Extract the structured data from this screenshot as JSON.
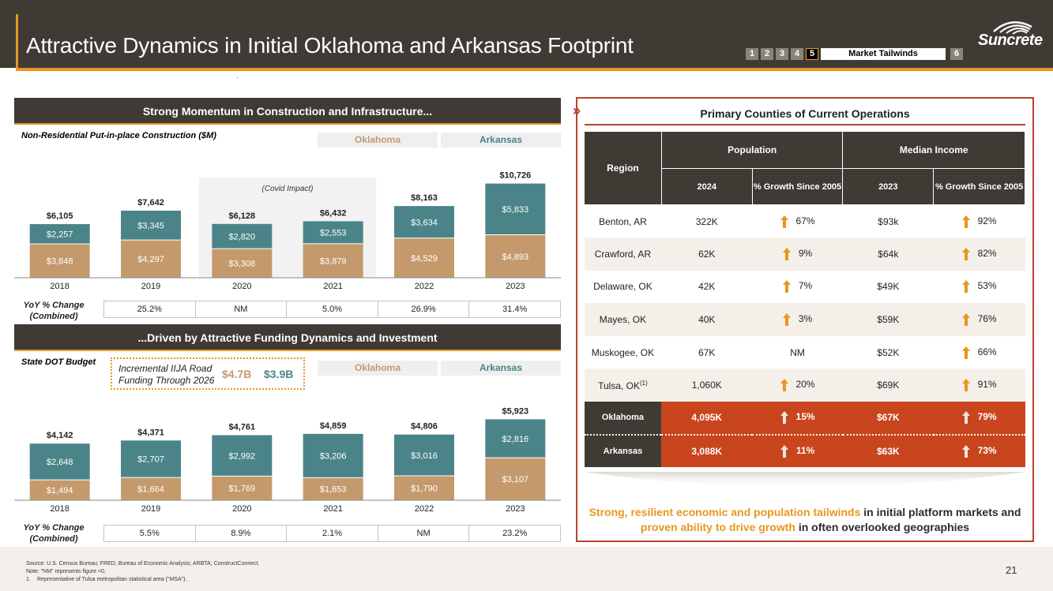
{
  "header": {
    "title": "Attractive Dynamics in Initial Oklahoma and Arkansas Footprint",
    "nav_left": [
      "1",
      "2",
      "3",
      "4",
      "5"
    ],
    "nav_active": "5",
    "nav_tab": "Market Tailwinds",
    "nav_right": "6",
    "logo_text": "Suncrete"
  },
  "colors": {
    "header_bg": "#3f3a34",
    "accent": "#e8961e",
    "oklahoma": "#c49a6c",
    "arkansas": "#4a8488",
    "highlight_row": "#c8451e",
    "panel_border": "#b8432a"
  },
  "top": {
    "section_title": "Strong Momentum in Construction and Infrastructure...",
    "subtitle": "Non-Residential Put-in-place Construction ($M)",
    "legend_ok": "Oklahoma",
    "legend_ar": "Arkansas",
    "covid_label": "(Covid Impact)",
    "yoy_label": "YoY % Change (Combined)",
    "yoy": [
      "25.2%",
      "NM",
      "5.0%",
      "26.9%",
      "31.4%"
    ]
  },
  "bottom": {
    "section_title": "...Driven by Attractive Funding Dynamics and Investment",
    "subtitle": "State DOT Budget",
    "iija_text": "Incremental IIJA Road Funding Through 2026",
    "iija_ok": "$4.7B",
    "iija_ar": "$3.9B",
    "legend_ok": "Oklahoma",
    "legend_ar": "Arkansas",
    "yoy_label": "YoY % Change (Combined)",
    "yoy": [
      "5.5%",
      "8.9%",
      "2.1%",
      "NM",
      "23.2%"
    ]
  },
  "chart_data": [
    {
      "type": "bar",
      "stacked": true,
      "title": "Non-Residential Put-in-place Construction ($M)",
      "categories": [
        "2018",
        "2019",
        "2020",
        "2021",
        "2022",
        "2023"
      ],
      "series": [
        {
          "name": "Oklahoma",
          "values": [
            3848,
            4297,
            3308,
            3879,
            4529,
            4893
          ],
          "labels": [
            "$3,848",
            "$4,297",
            "$3,308",
            "$3,879",
            "$4,529",
            "$4,893"
          ]
        },
        {
          "name": "Arkansas",
          "values": [
            2257,
            3345,
            2820,
            2553,
            3634,
            5833
          ],
          "labels": [
            "$2,257",
            "$3,345",
            "$2,820",
            "$2,553",
            "$3,634",
            "$5,833"
          ]
        }
      ],
      "totals": [
        "$6,105",
        "$7,642",
        "$6,128",
        "$6,432",
        "$8,163",
        "$10,726"
      ],
      "ylim": [
        0,
        11500
      ]
    },
    {
      "type": "bar",
      "stacked": true,
      "title": "State DOT Budget",
      "categories": [
        "2018",
        "2019",
        "2020",
        "2021",
        "2022",
        "2023"
      ],
      "series": [
        {
          "name": "Oklahoma",
          "values": [
            1494,
            1664,
            1769,
            1653,
            1790,
            3107
          ],
          "labels": [
            "$1,494",
            "$1,664",
            "$1,769",
            "$1,653",
            "$1,790",
            "$3,107"
          ]
        },
        {
          "name": "Arkansas",
          "values": [
            2648,
            2707,
            2992,
            3206,
            3016,
            2816
          ],
          "labels": [
            "$2,648",
            "$2,707",
            "$2,992",
            "$3,206",
            "$3,016",
            "$2,816"
          ]
        }
      ],
      "totals": [
        "$4,142",
        "$4,371",
        "$4,761",
        "$4,859",
        "$4,806",
        "$5,923"
      ],
      "ylim": [
        0,
        6350
      ]
    }
  ],
  "table": {
    "title": "Primary Counties of Current Operations",
    "h_region": "Region",
    "h_population": "Population",
    "h_income": "Median Income",
    "h_2024": "2024",
    "h_pop_growth": "% Growth Since 2005",
    "h_2023": "2023",
    "h_inc_growth": "% Growth Since 2005",
    "rows": [
      {
        "region": "Benton, AR",
        "pop": "322K",
        "pop_growth": "67%",
        "income": "$93k",
        "inc_growth": "92%"
      },
      {
        "region": "Crawford, AR",
        "pop": "62K",
        "pop_growth": "9%",
        "income": "$64k",
        "inc_growth": "82%"
      },
      {
        "region": "Delaware, OK",
        "pop": "42K",
        "pop_growth": "7%",
        "income": "$49K",
        "inc_growth": "53%"
      },
      {
        "region": "Mayes, OK",
        "pop": "40K",
        "pop_growth": "3%",
        "income": "$59K",
        "inc_growth": "76%"
      },
      {
        "region": "Muskogee, OK",
        "pop": "67K",
        "pop_growth": "NM",
        "income": "$52K",
        "inc_growth": "66%"
      },
      {
        "region": "Tulsa, OK",
        "region_sup": "(1)",
        "pop": "1,060K",
        "pop_growth": "20%",
        "income": "$69K",
        "inc_growth": "91%"
      }
    ],
    "summary_rows": [
      {
        "region": "Oklahoma",
        "pop": "4,095K",
        "pop_growth": "15%",
        "income": "$67K",
        "inc_growth": "79%"
      },
      {
        "region": "Arkansas",
        "pop": "3,088K",
        "pop_growth": "11%",
        "income": "$63K",
        "inc_growth": "73%"
      }
    ]
  },
  "summary": {
    "hl1": "Strong, resilient economic and population tailwinds",
    "t1": " in initial platform markets and ",
    "hl2": "proven ability to drive growth",
    "t2": " in often overlooked geographies"
  },
  "footer": {
    "source": "Source: U.S. Census Bureau; FRED; Bureau of Economic Analysis; ARBTA; ConstructConnect.",
    "note": "Note: \"NM\" represents figure <0.",
    "footnote_num": "1.",
    "footnote": "Representative of Tulsa metropolitan statistical area (\"MSA\").",
    "page": "21"
  }
}
